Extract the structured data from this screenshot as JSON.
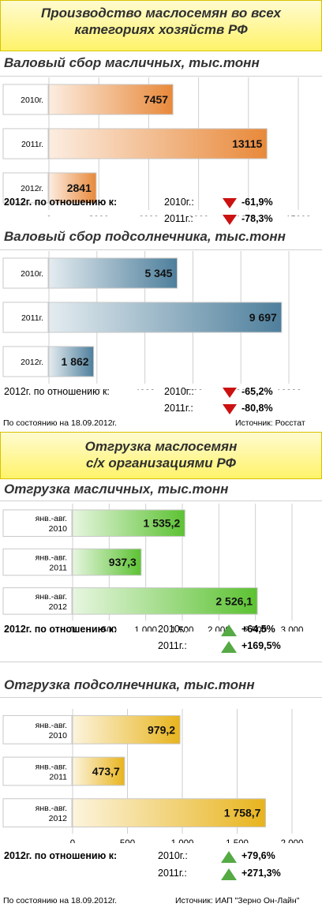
{
  "banner1": {
    "line1": "Производство маслосемян во всех",
    "line2": "категориях хозяйств РФ"
  },
  "banner2": {
    "line1": "Отгрузка маслосемян",
    "line2": "с/х организациями РФ"
  },
  "colors": {
    "orange": "#e8893a",
    "blue": "#4e7f9c",
    "green": "#5cc232",
    "gold": "#e8b41e",
    "down": "#cc1111",
    "up": "#55aa44"
  },
  "charts": [
    {
      "title": "Валовый сбор масличных, тыс.тонн",
      "cmp_label": "2012г. по отношению к:",
      "cmp": [
        {
          "year": "2010г.:",
          "dir": "down",
          "value": "-61,9%"
        },
        {
          "year": "2011г.:",
          "dir": "down",
          "value": "-78,3%"
        }
      ]
    },
    {
      "title": "Валовый сбор подсолнечника, тыс.тонн",
      "cmp_label": "2012г. по отношению к:",
      "cmp": [
        {
          "year": "2010г.:",
          "dir": "down",
          "value": "-65,2%"
        },
        {
          "year": "2011г.:",
          "dir": "down",
          "value": "-80,8%"
        }
      ]
    },
    {
      "title": "Отгрузка масличных, тыс.тонн",
      "cmp_label": "2012г. по отношению к:",
      "cmp": [
        {
          "year": "2010г.:",
          "dir": "up",
          "value": "+64,5%"
        },
        {
          "year": "2011г.:",
          "dir": "up",
          "value": "+169,5%"
        }
      ]
    },
    {
      "title": "Отгрузка подсолнечника, тыс.тонн",
      "cmp_label": "2012г. по отношению к:",
      "cmp": [
        {
          "year": "2010г.:",
          "dir": "up",
          "value": "+79,6%"
        },
        {
          "year": "2011г.:",
          "dir": "up",
          "value": "+271,3%"
        }
      ]
    }
  ],
  "footer1": {
    "date": "По состоянию на 18.09.2012г.",
    "source": "Источник: Росстат"
  },
  "footer2": {
    "date": "По состоянию на 18.09.2012г.",
    "source": "Источник: ИАП \"Зерно Он-Лайн\""
  },
  "chart_data": [
    {
      "type": "bar",
      "orientation": "horizontal",
      "categories": [
        "2010г.",
        "2011г.",
        "2012г."
      ],
      "values": [
        7457,
        13115,
        2841
      ],
      "data_labels": [
        "7457",
        "13115",
        "2841"
      ],
      "xlim": [
        0,
        15000
      ],
      "xticks": [
        "0",
        "3000",
        "6000",
        "9000",
        "12000",
        "15000"
      ],
      "grid": true
    },
    {
      "type": "bar",
      "orientation": "horizontal",
      "categories": [
        "2010г.",
        "2011г.",
        "2012г."
      ],
      "values": [
        5345,
        9697,
        1862
      ],
      "data_labels": [
        "5 345",
        "9 697",
        "1 862"
      ],
      "xlim": [
        0,
        10000
      ],
      "xticks": [
        "0",
        "2000",
        "4000",
        "6000",
        "8000",
        "10000"
      ],
      "grid": true
    },
    {
      "type": "bar",
      "orientation": "horizontal",
      "categories": [
        [
          "янв.-авг.",
          "2010"
        ],
        [
          "янв.-авг.",
          "2011"
        ],
        [
          "янв.-авг.",
          "2012"
        ]
      ],
      "values": [
        1535.2,
        937.3,
        2526.1
      ],
      "data_labels": [
        "1 535,2",
        "937,3",
        "2 526,1"
      ],
      "xlim": [
        0,
        3000
      ],
      "xticks": [
        "0",
        "500",
        "1 000",
        "1 500",
        "2 000",
        "2 500",
        "3 000"
      ],
      "grid": true
    },
    {
      "type": "bar",
      "orientation": "horizontal",
      "categories": [
        [
          "янв.-авг.",
          "2010"
        ],
        [
          "янв.-авг.",
          "2011"
        ],
        [
          "янв.-авг.",
          "2012"
        ]
      ],
      "values": [
        979.2,
        473.7,
        1758.7
      ],
      "data_labels": [
        "979,2",
        "473,7",
        "1 758,7"
      ],
      "xlim": [
        0,
        2000
      ],
      "xticks": [
        "0",
        "500",
        "1 000",
        "1 500",
        "2 000"
      ],
      "grid": true
    }
  ]
}
